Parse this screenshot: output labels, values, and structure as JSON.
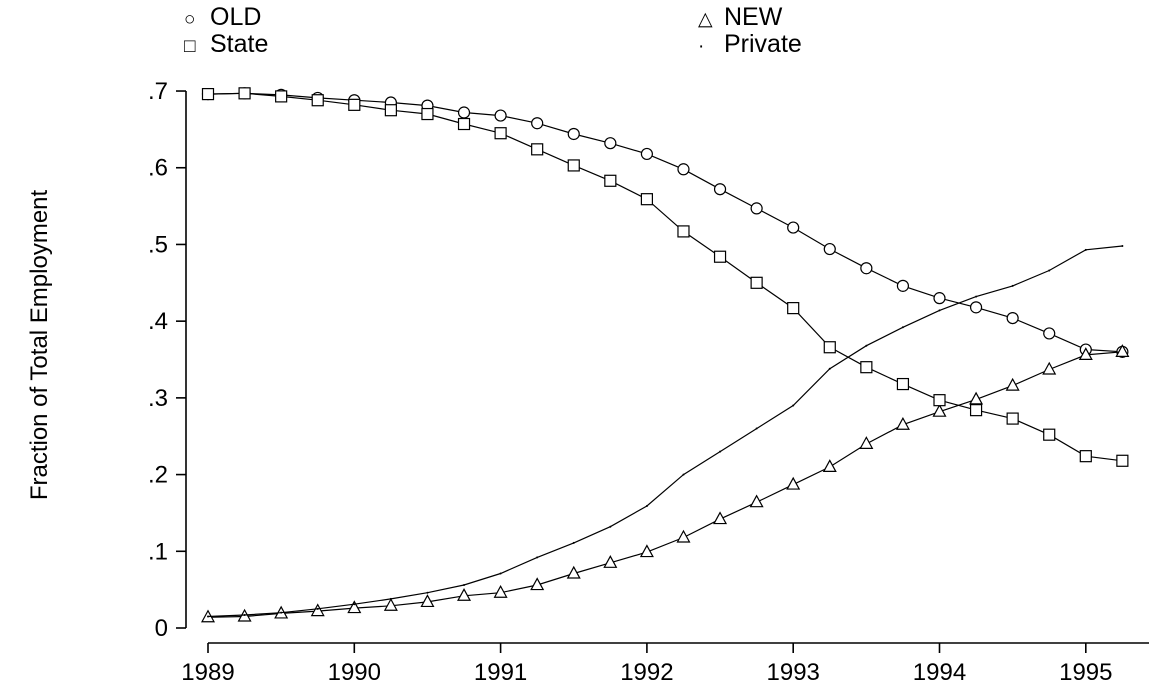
{
  "chart_data": {
    "type": "line",
    "title": "",
    "xlabel": "",
    "ylabel": "Fraction of Total Employment",
    "xlim": [
      1989,
      1995.5
    ],
    "ylim": [
      0,
      0.7
    ],
    "x_ticks": [
      1989,
      1990,
      1991,
      1992,
      1993,
      1994,
      1995
    ],
    "y_ticks": [
      0,
      0.1,
      0.2,
      0.3,
      0.4,
      0.5,
      0.6,
      0.7
    ],
    "y_tick_labels": [
      "0",
      ".1",
      ".2",
      ".3",
      ".4",
      ".5",
      ".6",
      ".7"
    ],
    "grid": false,
    "legend_position": "top",
    "x": [
      1989,
      1989.25,
      1989.5,
      1989.75,
      1990,
      1990.25,
      1990.5,
      1990.75,
      1991,
      1991.25,
      1991.5,
      1991.75,
      1992,
      1992.25,
      1992.5,
      1992.75,
      1993,
      1993.25,
      1993.5,
      1993.75,
      1994,
      1994.25,
      1994.5,
      1994.75,
      1995,
      1995.25
    ],
    "series": [
      {
        "name": "OLD",
        "marker": "circle",
        "values": [
          0.696,
          0.697,
          0.695,
          0.691,
          0.688,
          0.685,
          0.681,
          0.672,
          0.668,
          0.658,
          0.644,
          0.632,
          0.618,
          0.598,
          0.572,
          0.547,
          0.522,
          0.494,
          0.469,
          0.446,
          0.43,
          0.418,
          0.404,
          0.384,
          0.363,
          0.36
        ]
      },
      {
        "name": "NEW",
        "marker": "triangle",
        "values": [
          0.014,
          0.015,
          0.019,
          0.022,
          0.026,
          0.029,
          0.034,
          0.042,
          0.046,
          0.056,
          0.071,
          0.085,
          0.099,
          0.118,
          0.142,
          0.164,
          0.187,
          0.21,
          0.24,
          0.265,
          0.282,
          0.298,
          0.316,
          0.337,
          0.356,
          0.36
        ]
      },
      {
        "name": "State",
        "marker": "square",
        "values": [
          0.696,
          0.697,
          0.693,
          0.688,
          0.682,
          0.675,
          0.67,
          0.657,
          0.645,
          0.624,
          0.603,
          0.583,
          0.559,
          0.517,
          0.484,
          0.45,
          0.417,
          0.366,
          0.34,
          0.318,
          0.297,
          0.284,
          0.273,
          0.252,
          0.224,
          0.218
        ]
      },
      {
        "name": "Private",
        "marker": "dot",
        "values": [
          0.015,
          0.017,
          0.02,
          0.025,
          0.031,
          0.038,
          0.046,
          0.056,
          0.071,
          0.092,
          0.111,
          0.132,
          0.159,
          0.2,
          0.23,
          0.26,
          0.29,
          0.338,
          0.368,
          0.392,
          0.414,
          0.432,
          0.446,
          0.466,
          0.493,
          0.498
        ]
      }
    ]
  }
}
